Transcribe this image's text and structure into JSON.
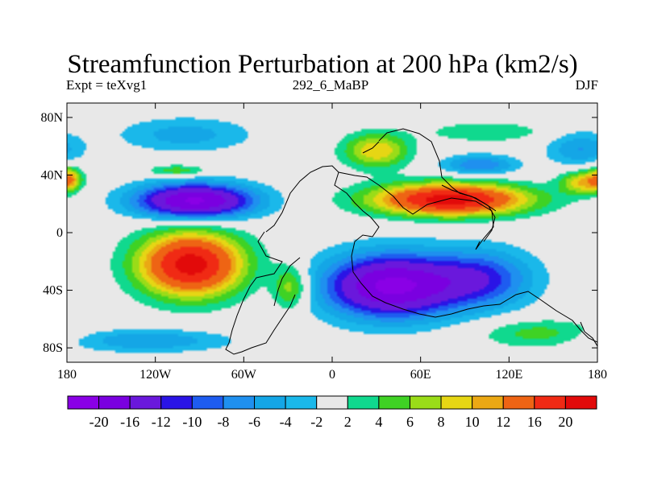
{
  "chart_data": {
    "type": "heatmap",
    "title": "Streamfunction Perturbation at 200 hPa (km2/s)",
    "subtitle_left": "Expt = teXvg1",
    "subtitle_center": "292_6_MaBP",
    "subtitle_right": "DJF",
    "x_range": [
      -180,
      180
    ],
    "y_range": [
      -90,
      90
    ],
    "x_ticks": [
      {
        "value": -180,
        "label": "180"
      },
      {
        "value": -120,
        "label": "120W"
      },
      {
        "value": -60,
        "label": "60W"
      },
      {
        "value": 0,
        "label": "0"
      },
      {
        "value": 60,
        "label": "60E"
      },
      {
        "value": 120,
        "label": "120E"
      },
      {
        "value": 180,
        "label": "180"
      }
    ],
    "y_ticks": [
      {
        "value": 80,
        "label": "80N"
      },
      {
        "value": 40,
        "label": "40N"
      },
      {
        "value": 0,
        "label": "0"
      },
      {
        "value": -40,
        "label": "40S"
      },
      {
        "value": -80,
        "label": "80S"
      }
    ],
    "levels": [
      -20,
      -16,
      -12,
      -10,
      -8,
      -6,
      -4,
      -2,
      2,
      4,
      6,
      8,
      10,
      12,
      16,
      20
    ],
    "colors": [
      "#8a00e6",
      "#7a00e0",
      "#6a18dc",
      "#2a14e6",
      "#1e5cf0",
      "#1f90ef",
      "#14a6e6",
      "#1ab8ea",
      "#e8e8e8",
      "#10d98e",
      "#3fd224",
      "#9adc18",
      "#e6d614",
      "#eba814",
      "#ee6414",
      "#f02a14",
      "#e20a0a"
    ],
    "anomalies": [
      {
        "lon": -93,
        "lat": 22,
        "value": -21,
        "lonR": 40,
        "latR": 12
      },
      {
        "lon": -100,
        "lat": 68,
        "value": -5,
        "lonR": 45,
        "latR": 12
      },
      {
        "lon": 40,
        "lat": -37,
        "value": -21,
        "lonR": 45,
        "latR": 22
      },
      {
        "lon": 102,
        "lat": -32,
        "value": -10,
        "lonR": 35,
        "latR": 20
      },
      {
        "lon": 100,
        "lat": 47,
        "value": -8,
        "lonR": 25,
        "latR": 7
      },
      {
        "lon": 168,
        "lat": 58,
        "value": -6,
        "lonR": 22,
        "latR": 12
      },
      {
        "lon": -125,
        "lat": -75,
        "value": -6,
        "lonR": 55,
        "latR": 8
      },
      {
        "lon": 80,
        "lat": 23,
        "value": 22,
        "lonR": 52,
        "latR": 11
      },
      {
        "lon": 170,
        "lat": 35,
        "value": 10,
        "lonR": 15,
        "latR": 8
      },
      {
        "lon": -96,
        "lat": -22,
        "value": 22,
        "lonR": 35,
        "latR": 22
      },
      {
        "lon": -28,
        "lat": -38,
        "value": 8,
        "lonR": 12,
        "latR": 15
      },
      {
        "lon": 30,
        "lat": 57,
        "value": 10,
        "lonR": 22,
        "latR": 12
      },
      {
        "lon": 105,
        "lat": 70,
        "value": 4,
        "lonR": 40,
        "latR": 7
      },
      {
        "lon": -105,
        "lat": 43,
        "value": 6,
        "lonR": 20,
        "latR": 4
      },
      {
        "lon": 140,
        "lat": -70,
        "value": 5,
        "lonR": 40,
        "latR": 10
      },
      {
        "lon": -178,
        "lat": 38,
        "value": 9,
        "lonR": 8,
        "latR": 8
      }
    ],
    "colorbar_labels": [
      "-20",
      "-16",
      "-12",
      "-10",
      "-8",
      "-6",
      "-4",
      "-2",
      "2",
      "4",
      "6",
      "8",
      "10",
      "12",
      "16",
      "20"
    ]
  }
}
